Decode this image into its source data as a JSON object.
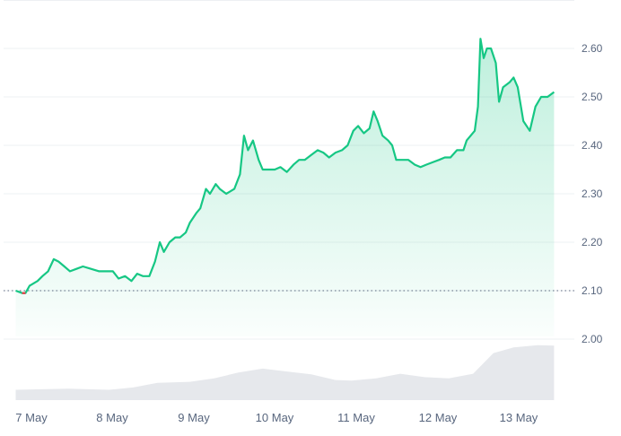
{
  "chart_data": {
    "type": "area",
    "x_labels": [
      "7 May",
      "8 May",
      "9 May",
      "10 May",
      "11 May",
      "12 May",
      "13 May"
    ],
    "y_ticks": [
      "2.00",
      "2.10",
      "2.20",
      "2.30",
      "2.40",
      "2.50",
      "2.60"
    ],
    "ylim": [
      1.9,
      2.7
    ],
    "baseline": 2.1,
    "grid": true,
    "line_color": "#16c784",
    "below_baseline_color": "#ea3943",
    "volume_color": "#e6e8ec",
    "series": [
      {
        "points": [
          [
            6.85,
            2.1
          ],
          [
            6.93,
            2.095
          ],
          [
            6.97,
            2.095
          ],
          [
            7.02,
            2.11
          ],
          [
            7.12,
            2.12
          ],
          [
            7.18,
            2.13
          ],
          [
            7.25,
            2.14
          ],
          [
            7.32,
            2.165
          ],
          [
            7.38,
            2.16
          ],
          [
            7.45,
            2.15
          ],
          [
            7.52,
            2.14
          ],
          [
            7.6,
            2.145
          ],
          [
            7.68,
            2.15
          ],
          [
            7.78,
            2.145
          ],
          [
            7.88,
            2.14
          ],
          [
            7.98,
            2.14
          ],
          [
            8.05,
            2.14
          ],
          [
            8.12,
            2.125
          ],
          [
            8.2,
            2.13
          ],
          [
            8.28,
            2.12
          ],
          [
            8.35,
            2.135
          ],
          [
            8.42,
            2.13
          ],
          [
            8.5,
            2.13
          ],
          [
            8.57,
            2.16
          ],
          [
            8.63,
            2.2
          ],
          [
            8.68,
            2.18
          ],
          [
            8.75,
            2.2
          ],
          [
            8.82,
            2.21
          ],
          [
            8.88,
            2.21
          ],
          [
            8.95,
            2.22
          ],
          [
            9.0,
            2.24
          ],
          [
            9.08,
            2.26
          ],
          [
            9.13,
            2.27
          ],
          [
            9.2,
            2.31
          ],
          [
            9.25,
            2.3
          ],
          [
            9.32,
            2.32
          ],
          [
            9.37,
            2.31
          ],
          [
            9.45,
            2.3
          ],
          [
            9.55,
            2.31
          ],
          [
            9.62,
            2.34
          ],
          [
            9.67,
            2.42
          ],
          [
            9.72,
            2.39
          ],
          [
            9.78,
            2.41
          ],
          [
            9.85,
            2.37
          ],
          [
            9.9,
            2.35
          ],
          [
            9.98,
            2.35
          ],
          [
            10.05,
            2.35
          ],
          [
            10.12,
            2.355
          ],
          [
            10.2,
            2.345
          ],
          [
            10.28,
            2.36
          ],
          [
            10.35,
            2.37
          ],
          [
            10.42,
            2.37
          ],
          [
            10.5,
            2.38
          ],
          [
            10.58,
            2.39
          ],
          [
            10.65,
            2.385
          ],
          [
            10.72,
            2.375
          ],
          [
            10.8,
            2.385
          ],
          [
            10.88,
            2.39
          ],
          [
            10.95,
            2.4
          ],
          [
            11.02,
            2.43
          ],
          [
            11.08,
            2.44
          ],
          [
            11.15,
            2.425
          ],
          [
            11.22,
            2.435
          ],
          [
            11.27,
            2.47
          ],
          [
            11.32,
            2.45
          ],
          [
            11.38,
            2.42
          ],
          [
            11.45,
            2.41
          ],
          [
            11.5,
            2.4
          ],
          [
            11.55,
            2.37
          ],
          [
            11.6,
            2.37
          ],
          [
            11.7,
            2.37
          ],
          [
            11.78,
            2.36
          ],
          [
            11.85,
            2.355
          ],
          [
            11.92,
            2.36
          ],
          [
            12.0,
            2.365
          ],
          [
            12.08,
            2.37
          ],
          [
            12.15,
            2.375
          ],
          [
            12.22,
            2.375
          ],
          [
            12.3,
            2.39
          ],
          [
            12.38,
            2.39
          ],
          [
            12.42,
            2.41
          ],
          [
            12.47,
            2.42
          ],
          [
            12.52,
            2.43
          ],
          [
            12.56,
            2.48
          ],
          [
            12.59,
            2.62
          ],
          [
            12.63,
            2.58
          ],
          [
            12.67,
            2.6
          ],
          [
            12.72,
            2.6
          ],
          [
            12.78,
            2.57
          ],
          [
            12.82,
            2.49
          ],
          [
            12.87,
            2.52
          ],
          [
            12.95,
            2.53
          ],
          [
            13.0,
            2.54
          ],
          [
            13.05,
            2.52
          ],
          [
            13.12,
            2.45
          ],
          [
            13.2,
            2.43
          ],
          [
            13.27,
            2.48
          ],
          [
            13.34,
            2.5
          ],
          [
            13.42,
            2.5
          ],
          [
            13.5,
            2.51
          ]
        ]
      }
    ],
    "volume": [
      [
        6.85,
        0.18
      ],
      [
        7.5,
        0.2
      ],
      [
        8.0,
        0.18
      ],
      [
        8.3,
        0.22
      ],
      [
        8.6,
        0.3
      ],
      [
        9.0,
        0.32
      ],
      [
        9.3,
        0.38
      ],
      [
        9.6,
        0.48
      ],
      [
        9.9,
        0.55
      ],
      [
        10.2,
        0.5
      ],
      [
        10.5,
        0.45
      ],
      [
        10.8,
        0.35
      ],
      [
        11.0,
        0.34
      ],
      [
        11.3,
        0.38
      ],
      [
        11.6,
        0.46
      ],
      [
        11.9,
        0.4
      ],
      [
        12.2,
        0.38
      ],
      [
        12.5,
        0.46
      ],
      [
        12.75,
        0.82
      ],
      [
        13.0,
        0.92
      ],
      [
        13.3,
        0.96
      ],
      [
        13.5,
        0.95
      ]
    ]
  }
}
